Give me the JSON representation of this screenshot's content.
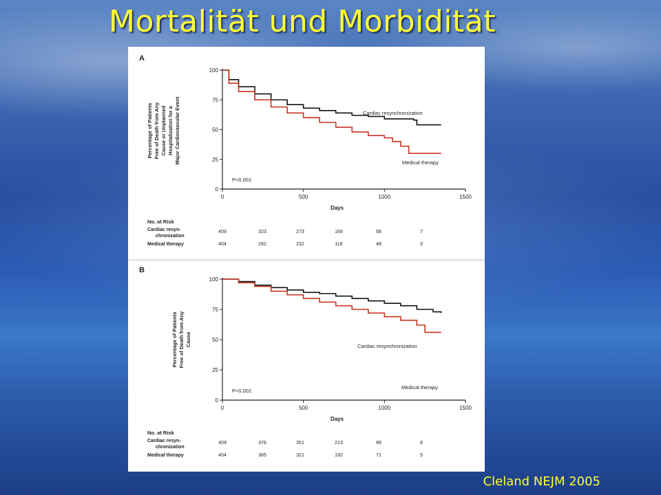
{
  "slide": {
    "title": "Mortalität und Morbidität",
    "citation": "Cleland NEJM 2005"
  },
  "colors": {
    "crt": "#111111",
    "medical": "#c8321e",
    "title": "#ffff33"
  },
  "chart_data": [
    {
      "type": "line",
      "panel": "A",
      "ylabel": "Percentage of Patients Free of Death from Any Cause or Unplanned Hospitalization for a Major Cardiovascular Event",
      "xlabel": "Days",
      "xlim": [
        0,
        1500
      ],
      "ylim": [
        0,
        100
      ],
      "xticks": [
        0,
        500,
        1000,
        1500
      ],
      "yticks": [
        0,
        25,
        50,
        75,
        100
      ],
      "p_value": "P<0.001",
      "series": [
        {
          "name": "Cardiac resynchronization",
          "color": "#111111",
          "x": [
            0,
            40,
            100,
            200,
            300,
            400,
            500,
            600,
            700,
            800,
            900,
            1000,
            1100,
            1180,
            1200,
            1300,
            1350
          ],
          "y": [
            100,
            92,
            86,
            80,
            75,
            71,
            68,
            66,
            64,
            62,
            61,
            59,
            59,
            58,
            54,
            54,
            54
          ]
        },
        {
          "name": "Medical therapy",
          "color": "#c8321e",
          "x": [
            0,
            40,
            100,
            200,
            300,
            400,
            500,
            600,
            700,
            800,
            900,
            1000,
            1050,
            1100,
            1150,
            1200,
            1300,
            1350
          ],
          "y": [
            100,
            89,
            82,
            75,
            69,
            64,
            60,
            56,
            52,
            48,
            45,
            43,
            40,
            36,
            30,
            30,
            30,
            30
          ]
        }
      ],
      "at_risk": {
        "header": "No. at Risk",
        "rows": [
          {
            "label": "Cardiac resyn-",
            "label2": "chronization",
            "values": [
              "409",
              "323",
              "273",
              "166",
              "68",
              "7"
            ]
          },
          {
            "label": "Medical therapy",
            "values": [
              "404",
              "292",
              "232",
              "118",
              "48",
              "3"
            ]
          }
        ]
      }
    },
    {
      "type": "line",
      "panel": "B",
      "ylabel": "Percentage of Patients Free of Death from Any Cause",
      "xlabel": "Days",
      "xlim": [
        0,
        1500
      ],
      "ylim": [
        0,
        100
      ],
      "xticks": [
        0,
        500,
        1000,
        1500
      ],
      "yticks": [
        0,
        25,
        50,
        75,
        100
      ],
      "p_value": "P<0.002",
      "series": [
        {
          "name": "Cardiac resynchronization",
          "color": "#111111",
          "x": [
            0,
            100,
            200,
            300,
            400,
            500,
            600,
            700,
            800,
            900,
            1000,
            1100,
            1200,
            1300,
            1350
          ],
          "y": [
            100,
            98,
            95,
            93,
            91,
            89,
            88,
            86,
            84,
            82,
            80,
            78,
            75,
            73,
            72
          ]
        },
        {
          "name": "Medical therapy",
          "color": "#c8321e",
          "x": [
            0,
            100,
            200,
            300,
            400,
            500,
            600,
            700,
            800,
            900,
            1000,
            1100,
            1200,
            1250,
            1350
          ],
          "y": [
            100,
            97,
            94,
            90,
            87,
            84,
            81,
            78,
            75,
            72,
            69,
            66,
            62,
            56,
            56
          ]
        }
      ],
      "at_risk": {
        "header": "No. at Risk",
        "rows": [
          {
            "label": "Cardiac resyn-",
            "label2": "chronization",
            "values": [
              "409",
              "376",
              "351",
              "213",
              "89",
              "8"
            ]
          },
          {
            "label": "Medical therapy",
            "values": [
              "404",
              "365",
              "321",
              "192",
              "71",
              "5"
            ]
          }
        ]
      }
    }
  ]
}
